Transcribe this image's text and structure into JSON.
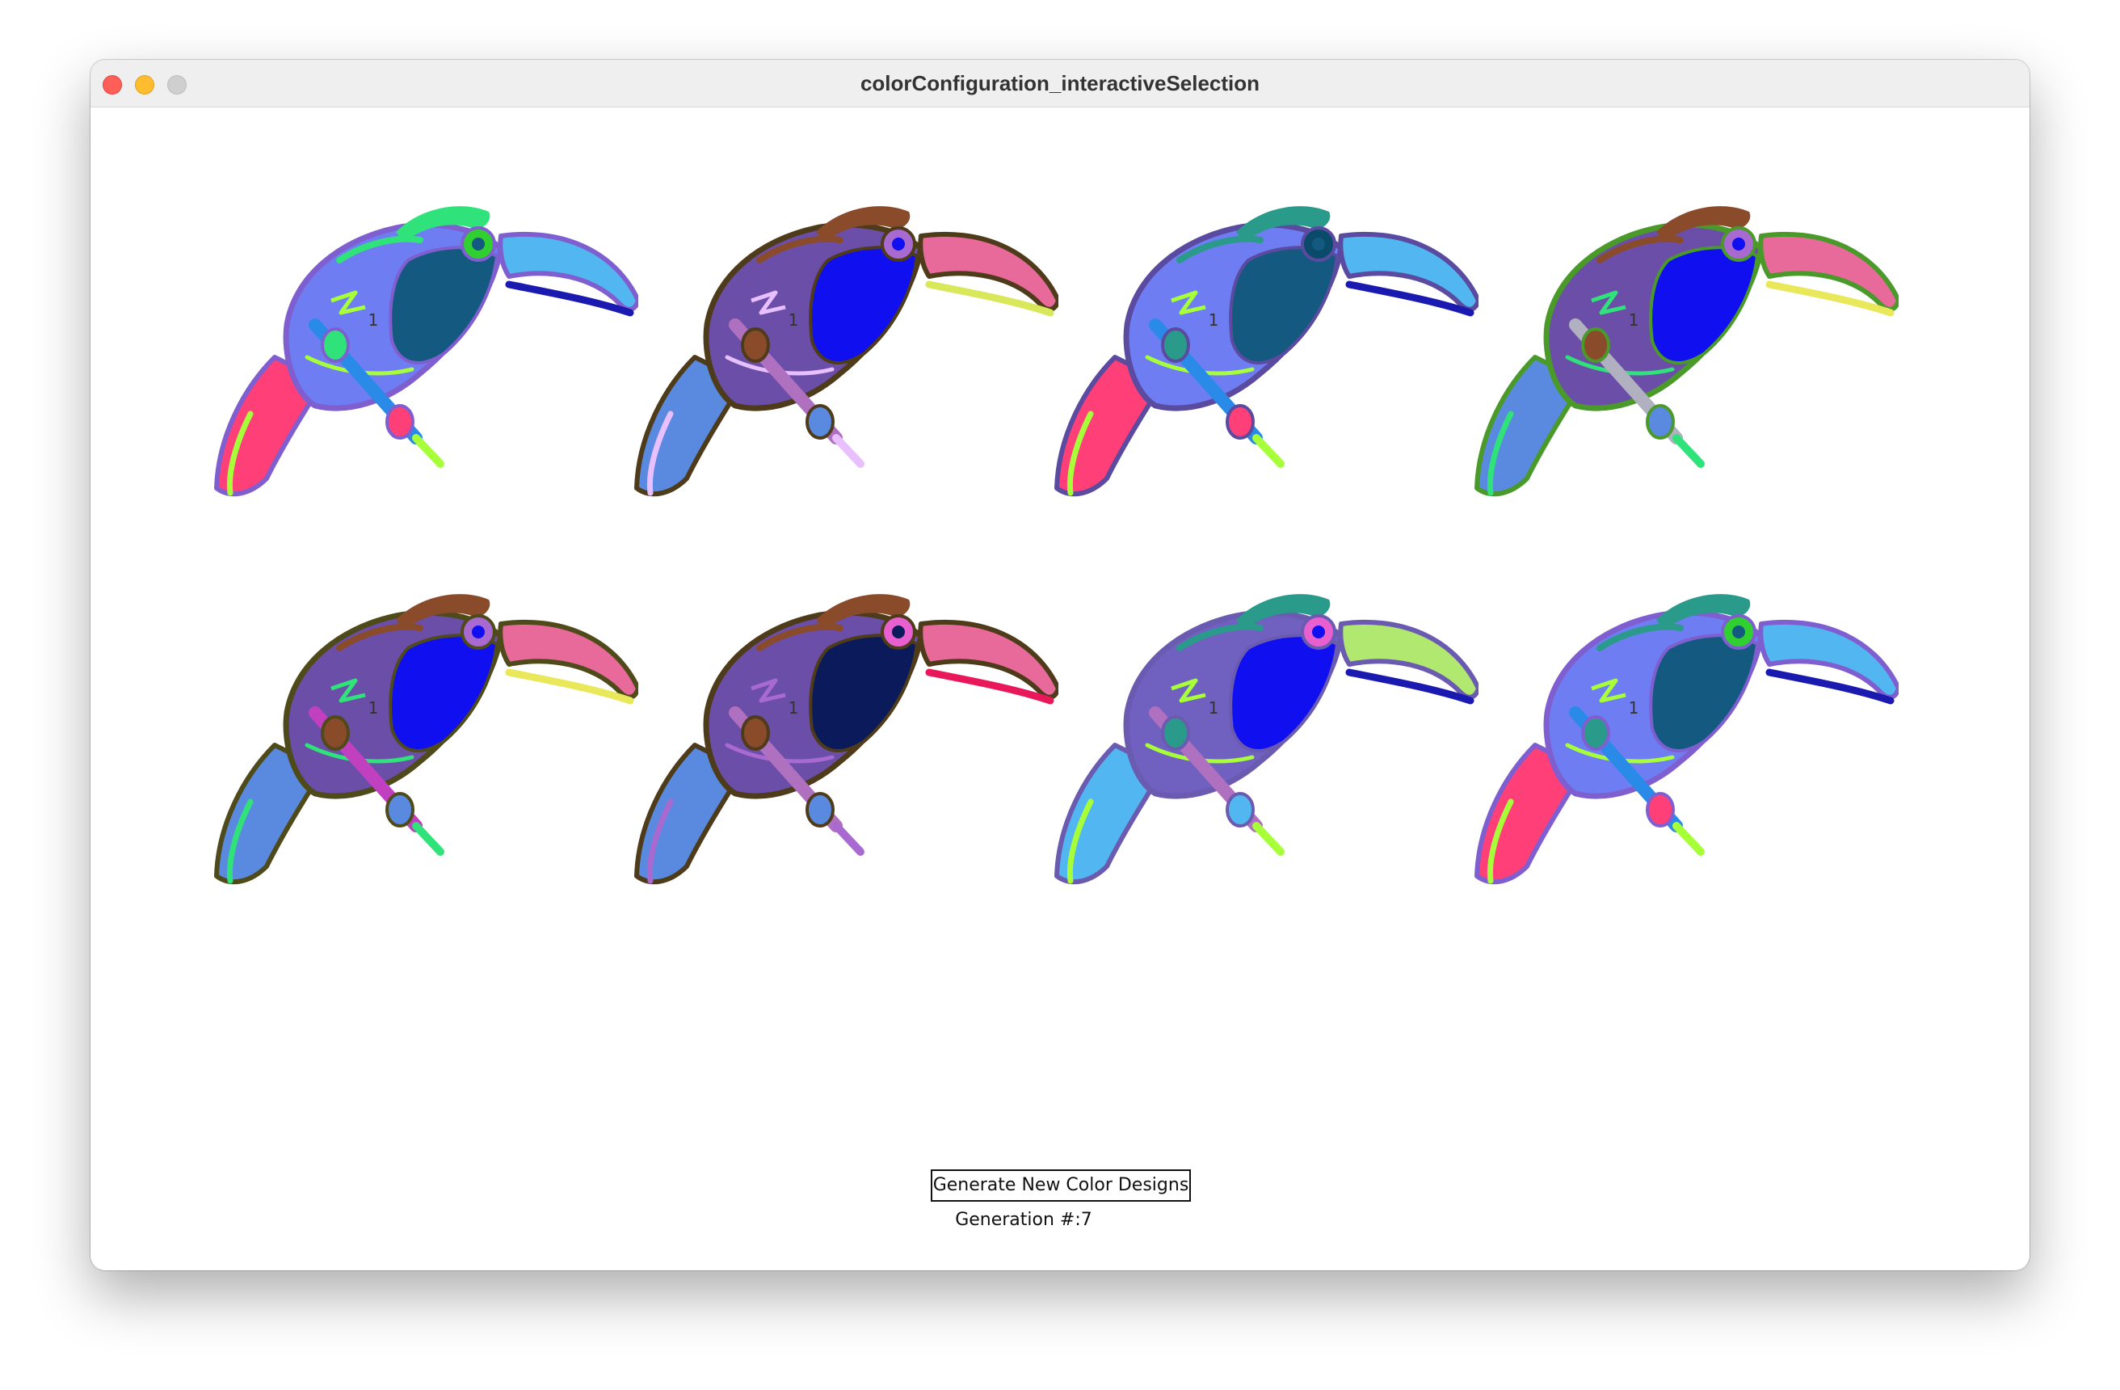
{
  "window": {
    "title": "colorConfiguration_interactiveSelection"
  },
  "designs": [
    {
      "score": "1",
      "colors": {
        "outline": "#7f5fd0",
        "body": "#6f7df2",
        "belly": "#145a80",
        "beak_top": "#52b7f0",
        "beak_bottom": "#1a1ab0",
        "tail": "#ff3f78",
        "crest": "#2fe27a",
        "eye": "#2fd02f",
        "perch": "#2a8ae8",
        "accent": "#a7ff3a"
      }
    },
    {
      "score": "1",
      "colors": {
        "outline": "#4e3b1a",
        "body": "#6a4ea8",
        "belly": "#0f0ff0",
        "beak_top": "#e86a9a",
        "beak_bottom": "#d8e85a",
        "tail": "#5a8ae0",
        "crest": "#8a4b2a",
        "eye": "#a86ad0",
        "perch": "#b070c0",
        "accent": "#e8c0ff"
      }
    },
    {
      "score": "1",
      "colors": {
        "outline": "#5a4aa0",
        "body": "#6f7df2",
        "belly": "#145a80",
        "beak_top": "#52b7f0",
        "beak_bottom": "#1a1ab0",
        "tail": "#ff3f78",
        "crest": "#2a9a8a",
        "eye": "#0a4a6a",
        "perch": "#2a8ae8",
        "accent": "#a7ff3a"
      }
    },
    {
      "score": "1",
      "colors": {
        "outline": "#4a9a2a",
        "body": "#6a4ea8",
        "belly": "#0f0ff0",
        "beak_top": "#e86a9a",
        "beak_bottom": "#e8e85a",
        "tail": "#5a8ae0",
        "crest": "#8a4b2a",
        "eye": "#a86ad0",
        "perch": "#b0b0c0",
        "accent": "#2fe27a"
      }
    },
    {
      "score": "1",
      "colors": {
        "outline": "#4e4a1a",
        "body": "#6a4ea8",
        "belly": "#0f0ff0",
        "beak_top": "#e86a9a",
        "beak_bottom": "#e8e85a",
        "tail": "#5a8ae0",
        "crest": "#8a4b2a",
        "eye": "#a86ad0",
        "perch": "#c040c0",
        "accent": "#2fe27a"
      }
    },
    {
      "score": "1",
      "colors": {
        "outline": "#4e3b1a",
        "body": "#6a4ea8",
        "belly": "#0a1a5a",
        "beak_top": "#e86a9a",
        "beak_bottom": "#e8185a",
        "tail": "#5a8ae0",
        "crest": "#8a4b2a",
        "eye": "#e860d0",
        "perch": "#b070c0",
        "accent": "#a86ad0"
      }
    },
    {
      "score": "1",
      "colors": {
        "outline": "#6a5ab0",
        "body": "#7060c0",
        "belly": "#0f0ff0",
        "beak_top": "#b0e870",
        "beak_bottom": "#1a1ab0",
        "tail": "#52b7f0",
        "crest": "#2a9a8a",
        "eye": "#e860d0",
        "perch": "#b070c0",
        "accent": "#a7ff3a"
      }
    },
    {
      "score": "1",
      "colors": {
        "outline": "#7f5fd0",
        "body": "#6f7df2",
        "belly": "#145a80",
        "beak_top": "#52b7f0",
        "beak_bottom": "#1a1ab0",
        "tail": "#ff3f78",
        "crest": "#2a9a8a",
        "eye": "#2fd02f",
        "perch": "#2a8ae8",
        "accent": "#a7ff3a"
      }
    }
  ],
  "controls": {
    "generate_button_label": "Generate New Color Designs",
    "generation_label": "Generation #:7"
  }
}
